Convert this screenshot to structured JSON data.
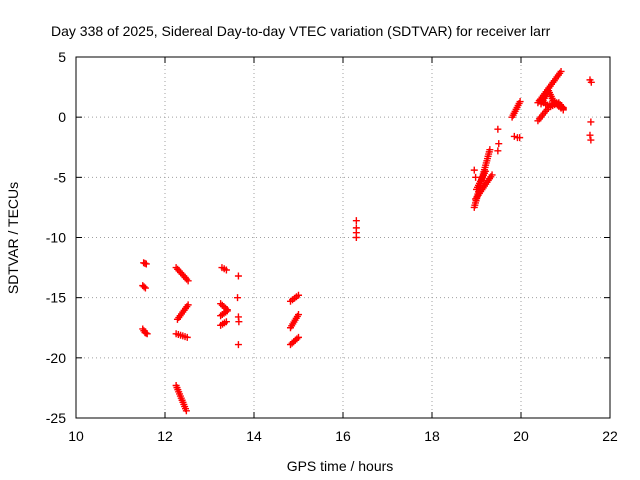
{
  "chart_data": {
    "type": "scatter",
    "title": "Day 338 of 2025, Sidereal Day-to-day VTEC variation (SDTVAR) for receiver larr",
    "xlabel": "GPS time / hours",
    "ylabel": "SDTVAR / TECUs",
    "xlim": [
      10,
      22
    ],
    "ylim": [
      -25,
      5
    ],
    "x_ticks": [
      "10",
      "12",
      "14",
      "16",
      "18",
      "20",
      "22"
    ],
    "y_ticks": [
      "5",
      "0",
      "-5",
      "-10",
      "-15",
      "-20",
      "-25"
    ],
    "grid": true,
    "marker_color": "#ff0000",
    "marker": "plus",
    "series": [
      {
        "segments": [
          [
            [
              11.52,
              -12.1
            ],
            [
              11.58,
              -12.2
            ]
          ],
          [
            [
              11.5,
              -14.0
            ],
            [
              11.56,
              -14.2
            ]
          ],
          [
            [
              11.5,
              -17.6
            ],
            [
              11.55,
              -17.9
            ],
            [
              11.6,
              -18.0
            ]
          ],
          [
            [
              12.25,
              -12.5
            ],
            [
              12.52,
              -13.6
            ]
          ],
          [
            [
              12.28,
              -16.8
            ],
            [
              12.52,
              -15.6
            ]
          ],
          [
            [
              12.25,
              -18.0
            ],
            [
              12.5,
              -18.3
            ]
          ],
          [
            [
              12.25,
              -22.3
            ],
            [
              12.48,
              -24.4
            ]
          ],
          [
            [
              13.28,
              -12.5
            ],
            [
              13.38,
              -12.7
            ]
          ],
          [
            [
              13.25,
              -15.5
            ],
            [
              13.4,
              -16.0
            ]
          ],
          [
            [
              13.25,
              -16.5
            ],
            [
              13.4,
              -16.1
            ]
          ],
          [
            [
              13.25,
              -17.3
            ],
            [
              13.38,
              -17.0
            ]
          ],
          [
            [
              14.82,
              -15.3
            ],
            [
              15.0,
              -14.8
            ]
          ],
          [
            [
              14.82,
              -17.5
            ],
            [
              15.0,
              -16.4
            ]
          ],
          [
            [
              14.82,
              -18.9
            ],
            [
              15.0,
              -18.3
            ]
          ],
          [
            [
              18.95,
              -7.5
            ],
            [
              19.3,
              -2.7
            ]
          ],
          [
            [
              18.98,
              -6.8
            ],
            [
              19.35,
              -4.8
            ]
          ],
          [
            [
              19.0,
              -6.0
            ],
            [
              19.2,
              -4.5
            ]
          ],
          [
            [
              19.8,
              0.0
            ],
            [
              19.98,
              1.3
            ]
          ],
          [
            [
              20.38,
              1.2
            ],
            [
              20.9,
              3.8
            ]
          ],
          [
            [
              20.42,
              1.4
            ],
            [
              20.6,
              1.0
            ],
            [
              20.8,
              1.2
            ],
            [
              20.95,
              0.8
            ]
          ],
          [
            [
              20.45,
              1.1
            ],
            [
              20.62,
              2.2
            ],
            [
              20.72,
              1.4
            ],
            [
              20.85,
              0.9
            ],
            [
              20.95,
              0.6
            ]
          ],
          [
            [
              20.38,
              -0.3
            ],
            [
              20.62,
              0.8
            ],
            [
              20.85,
              1.2
            ],
            [
              20.95,
              0.7
            ]
          ]
        ],
        "points": [
          [
            13.65,
            -13.2
          ],
          [
            13.63,
            -15.0
          ],
          [
            13.65,
            -16.6
          ],
          [
            13.66,
            -17.0
          ],
          [
            13.65,
            -18.9
          ],
          [
            16.3,
            -8.6
          ],
          [
            16.3,
            -9.2
          ],
          [
            16.3,
            -9.6
          ],
          [
            16.3,
            -10.0
          ],
          [
            18.95,
            -4.4
          ],
          [
            18.98,
            -5.0
          ],
          [
            19.48,
            -1.0
          ],
          [
            19.5,
            -2.2
          ],
          [
            19.48,
            -2.8
          ],
          [
            19.85,
            -1.6
          ],
          [
            19.92,
            -1.7
          ],
          [
            19.97,
            -1.7
          ],
          [
            21.55,
            3.1
          ],
          [
            21.58,
            2.9
          ],
          [
            21.57,
            -0.4
          ],
          [
            21.55,
            -1.5
          ],
          [
            21.57,
            -1.9
          ]
        ]
      }
    ]
  }
}
